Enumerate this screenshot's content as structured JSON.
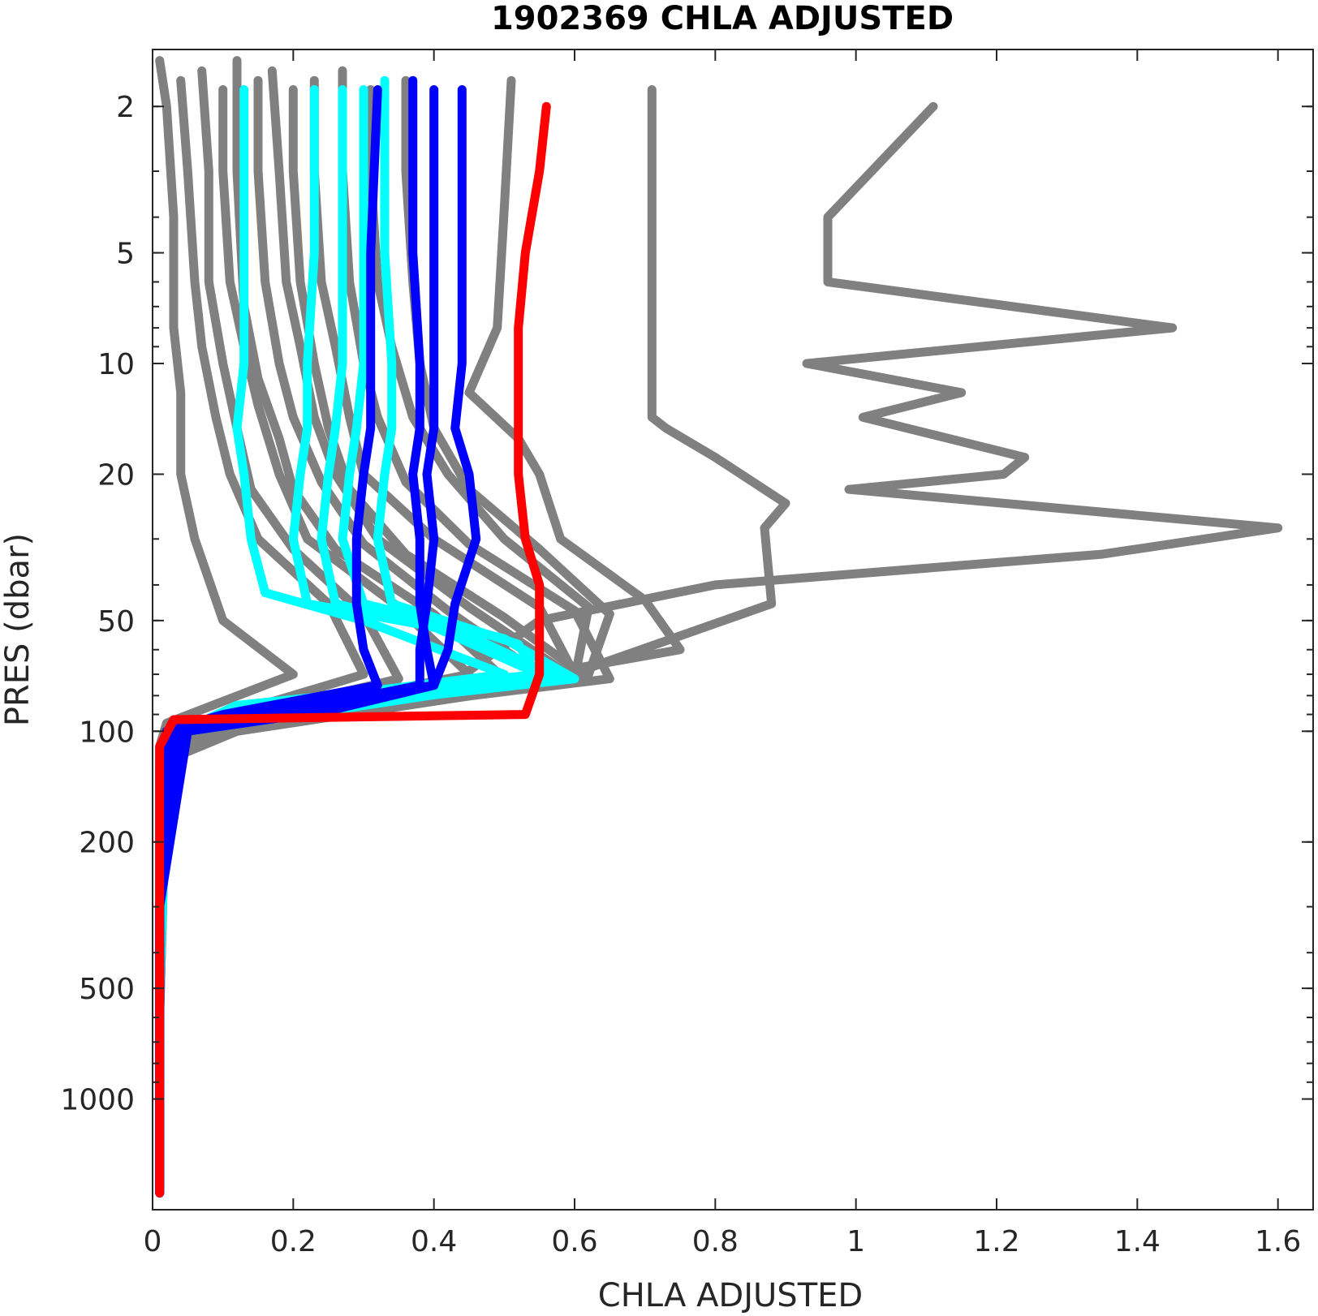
{
  "chart_data": {
    "type": "line",
    "title": "1902369  CHLA ADJUSTED",
    "xlabel": "CHLA ADJUSTED",
    "ylabel": "PRES (dbar)",
    "xlim": [
      0,
      1.65
    ],
    "ylim": [
      1.4,
      2000
    ],
    "y_scale": "log",
    "y_reversed": true,
    "grid": false,
    "legend": "none",
    "x_ticks": [
      {
        "value": 0,
        "label": "0"
      },
      {
        "value": 0.2,
        "label": "0.2"
      },
      {
        "value": 0.4,
        "label": "0.4"
      },
      {
        "value": 0.6,
        "label": "0.6"
      },
      {
        "value": 0.8,
        "label": "0.8"
      },
      {
        "value": 1.0,
        "label": "1"
      },
      {
        "value": 1.2,
        "label": "1.2"
      },
      {
        "value": 1.4,
        "label": "1.4"
      },
      {
        "value": 1.6,
        "label": "1.6"
      }
    ],
    "y_ticks": [
      {
        "value": 2,
        "label": "2"
      },
      {
        "value": 5,
        "label": "5"
      },
      {
        "value": 10,
        "label": "10"
      },
      {
        "value": 20,
        "label": "20"
      },
      {
        "value": 50,
        "label": "50"
      },
      {
        "value": 100,
        "label": "100"
      },
      {
        "value": 200,
        "label": "200"
      },
      {
        "value": 500,
        "label": "500"
      },
      {
        "value": 1000,
        "label": "1000"
      }
    ],
    "colors": {
      "gray": "#808080",
      "cyan": "#00ffff",
      "blue": "#0000ff",
      "red": "#ff0000"
    },
    "series": [
      {
        "color": "gray",
        "x": [
          0.01,
          0.02,
          0.03,
          0.03,
          0.04,
          0.04,
          0.06,
          0.1,
          0.2,
          0.02,
          0.01,
          0.01,
          0.01,
          0.01
        ],
        "y": [
          1.5,
          2,
          4,
          8,
          12,
          20,
          30,
          50,
          70,
          95,
          110,
          150,
          500,
          1800
        ]
      },
      {
        "color": "gray",
        "x": [
          0.04,
          0.05,
          0.06,
          0.07,
          0.09,
          0.11,
          0.15,
          0.25,
          0.3,
          0.03,
          0.01,
          0.01,
          0.01
        ],
        "y": [
          1.7,
          3,
          6,
          9,
          14,
          20,
          30,
          45,
          70,
          100,
          120,
          500,
          1800
        ]
      },
      {
        "color": "gray",
        "x": [
          0.07,
          0.08,
          0.08,
          0.1,
          0.12,
          0.14,
          0.2,
          0.3,
          0.35,
          0.04,
          0.02,
          0.01,
          0.01
        ],
        "y": [
          1.6,
          3,
          6,
          10,
          15,
          22,
          32,
          48,
          72,
          100,
          115,
          400,
          1800
        ]
      },
      {
        "color": "gray",
        "x": [
          0.1,
          0.1,
          0.11,
          0.13,
          0.15,
          0.18,
          0.22,
          0.35,
          0.45,
          0.05,
          0.02,
          0.01,
          0.01
        ],
        "y": [
          1.8,
          3,
          6,
          9,
          13,
          20,
          30,
          46,
          70,
          100,
          118,
          500,
          1800
        ]
      },
      {
        "color": "gray",
        "x": [
          0.12,
          0.12,
          0.13,
          0.15,
          0.18,
          0.2,
          0.26,
          0.4,
          0.5,
          0.05,
          0.02,
          0.01,
          0.01
        ],
        "y": [
          1.5,
          3,
          7,
          11,
          16,
          22,
          32,
          48,
          72,
          98,
          115,
          400,
          1800
        ]
      },
      {
        "color": "gray",
        "x": [
          0.15,
          0.15,
          0.16,
          0.18,
          0.2,
          0.24,
          0.3,
          0.42,
          0.55,
          0.06,
          0.02,
          0.01,
          0.01
        ],
        "y": [
          1.7,
          3,
          6,
          10,
          14,
          21,
          31,
          47,
          70,
          100,
          120,
          600,
          1800
        ]
      },
      {
        "color": "gray",
        "x": [
          0.17,
          0.18,
          0.19,
          0.21,
          0.23,
          0.26,
          0.32,
          0.45,
          0.6,
          0.07,
          0.02,
          0.01,
          0.01
        ],
        "y": [
          1.6,
          3,
          6,
          9,
          14,
          20,
          30,
          46,
          72,
          98,
          118,
          500,
          1800
        ]
      },
      {
        "color": "gray",
        "x": [
          0.2,
          0.2,
          0.21,
          0.23,
          0.25,
          0.28,
          0.36,
          0.5,
          0.62,
          0.07,
          0.02,
          0.01,
          0.01
        ],
        "y": [
          1.8,
          3,
          6,
          10,
          15,
          22,
          33,
          49,
          72,
          100,
          115,
          400,
          1800
        ]
      },
      {
        "color": "gray",
        "x": [
          0.23,
          0.23,
          0.24,
          0.26,
          0.28,
          0.3,
          0.4,
          0.55,
          0.6,
          0.08,
          0.02,
          0.01,
          0.01
        ],
        "y": [
          1.7,
          3,
          6,
          9,
          14,
          20,
          30,
          46,
          70,
          100,
          120,
          500,
          1800
        ]
      },
      {
        "color": "gray",
        "x": [
          0.27,
          0.27,
          0.28,
          0.3,
          0.32,
          0.36,
          0.45,
          0.6,
          0.65,
          0.08,
          0.02,
          0.01,
          0.01
        ],
        "y": [
          1.6,
          3,
          6,
          10,
          14,
          21,
          31,
          47,
          72,
          98,
          118,
          600,
          1800
        ]
      },
      {
        "color": "gray",
        "x": [
          0.31,
          0.31,
          0.32,
          0.34,
          0.37,
          0.42,
          0.5,
          0.62,
          0.6,
          0.08,
          0.02,
          0.01,
          0.01
        ],
        "y": [
          1.8,
          3,
          6,
          9,
          14,
          20,
          30,
          46,
          72,
          98,
          118,
          500,
          1800
        ]
      },
      {
        "color": "gray",
        "x": [
          0.36,
          0.36,
          0.37,
          0.38,
          0.4,
          0.45,
          0.55,
          0.65,
          0.62,
          0.09,
          0.02,
          0.01,
          0.01
        ],
        "y": [
          1.7,
          3,
          6,
          10,
          15,
          22,
          32,
          48,
          70,
          100,
          115,
          400,
          1800
        ]
      },
      {
        "color": "gray",
        "x": [
          0.51,
          0.5,
          0.49,
          0.45,
          0.52,
          0.55,
          0.58,
          0.7,
          0.75,
          0.1,
          0.02,
          0.01,
          0.01
        ],
        "y": [
          1.7,
          3.8,
          8,
          12,
          16,
          20,
          30,
          44,
          60,
          100,
          120,
          500,
          1800
        ]
      },
      {
        "color": "gray",
        "x": [
          0.71,
          0.71,
          0.71,
          0.71,
          0.73,
          0.8,
          0.9,
          0.87,
          0.88,
          0.55,
          0.12,
          0.02,
          0.01,
          0.01
        ],
        "y": [
          1.8,
          5,
          10,
          14,
          15,
          18,
          24,
          28,
          45,
          75,
          100,
          120,
          500,
          1800
        ]
      },
      {
        "color": "gray",
        "x": [
          1.11,
          0.96,
          0.96,
          1.45,
          0.93,
          1.15,
          1.01,
          1.24,
          1.21,
          0.99,
          1.6,
          1.35,
          0.8,
          0.55,
          0.4,
          0.05,
          0.01,
          0.01
        ],
        "y": [
          2,
          4,
          6,
          8,
          10,
          12,
          14,
          18,
          20,
          22,
          28,
          33,
          40,
          50,
          80,
          100,
          120,
          1800
        ]
      },
      {
        "color": "cyan",
        "x": [
          0.13,
          0.13,
          0.13,
          0.12,
          0.13,
          0.14,
          0.16,
          0.3,
          0.5,
          0.15,
          0.05,
          0.02,
          0.01,
          0.01
        ],
        "y": [
          1.8,
          5,
          10,
          15,
          20,
          30,
          42,
          50,
          70,
          85,
          100,
          130,
          500,
          1800
        ]
      },
      {
        "color": "cyan",
        "x": [
          0.23,
          0.23,
          0.22,
          0.22,
          0.21,
          0.2,
          0.22,
          0.4,
          0.55,
          0.12,
          0.04,
          0.02,
          0.01,
          0.01
        ],
        "y": [
          1.8,
          5,
          10,
          15,
          20,
          30,
          45,
          52,
          70,
          85,
          100,
          130,
          500,
          1800
        ]
      },
      {
        "color": "cyan",
        "x": [
          0.27,
          0.27,
          0.27,
          0.26,
          0.25,
          0.24,
          0.26,
          0.45,
          0.58,
          0.15,
          0.04,
          0.02,
          0.01,
          0.01
        ],
        "y": [
          1.8,
          5,
          10,
          15,
          20,
          30,
          45,
          55,
          72,
          88,
          100,
          140,
          500,
          1800
        ]
      },
      {
        "color": "cyan",
        "x": [
          0.3,
          0.3,
          0.3,
          0.29,
          0.28,
          0.27,
          0.3,
          0.5,
          0.6,
          0.2,
          0.05,
          0.02,
          0.01,
          0.01
        ],
        "y": [
          1.8,
          5,
          10,
          15,
          20,
          30,
          45,
          56,
          72,
          88,
          100,
          130,
          500,
          1800
        ]
      },
      {
        "color": "cyan",
        "x": [
          0.33,
          0.33,
          0.34,
          0.34,
          0.33,
          0.32,
          0.34,
          0.52,
          0.55,
          0.25,
          0.05,
          0.02,
          0.01,
          0.01
        ],
        "y": [
          1.7,
          5,
          10,
          15,
          20,
          30,
          45,
          58,
          72,
          88,
          100,
          130,
          500,
          1800
        ]
      },
      {
        "color": "blue",
        "x": [
          0.32,
          0.31,
          0.31,
          0.31,
          0.3,
          0.29,
          0.29,
          0.3,
          0.32,
          0.1,
          0.02,
          0.01,
          0.01
        ],
        "y": [
          1.8,
          5,
          10,
          15,
          20,
          30,
          45,
          60,
          75,
          90,
          100,
          300,
          1800
        ]
      },
      {
        "color": "blue",
        "x": [
          0.37,
          0.37,
          0.38,
          0.38,
          0.37,
          0.38,
          0.38,
          0.39,
          0.4,
          0.15,
          0.03,
          0.01,
          0.01
        ],
        "y": [
          1.7,
          5,
          10,
          15,
          20,
          30,
          45,
          60,
          75,
          90,
          100,
          300,
          1800
        ]
      },
      {
        "color": "blue",
        "x": [
          0.4,
          0.4,
          0.4,
          0.4,
          0.39,
          0.4,
          0.39,
          0.38,
          0.38,
          0.2,
          0.04,
          0.01,
          0.01
        ],
        "y": [
          1.8,
          5,
          10,
          15,
          20,
          30,
          45,
          60,
          75,
          88,
          100,
          300,
          1800
        ]
      },
      {
        "color": "blue",
        "x": [
          0.44,
          0.44,
          0.44,
          0.43,
          0.45,
          0.46,
          0.43,
          0.42,
          0.4,
          0.25,
          0.05,
          0.01,
          0.01
        ],
        "y": [
          1.8,
          5,
          10,
          15,
          20,
          30,
          45,
          60,
          75,
          88,
          100,
          300,
          1800
        ]
      },
      {
        "color": "red",
        "x": [
          0.56,
          0.55,
          0.53,
          0.52,
          0.52,
          0.52,
          0.53,
          0.55,
          0.55,
          0.55,
          0.53,
          0.03,
          0.01,
          0.01,
          0.01
        ],
        "y": [
          2,
          3,
          5,
          8,
          12,
          20,
          30,
          40,
          50,
          70,
          90,
          93,
          110,
          500,
          1800
        ]
      }
    ]
  }
}
